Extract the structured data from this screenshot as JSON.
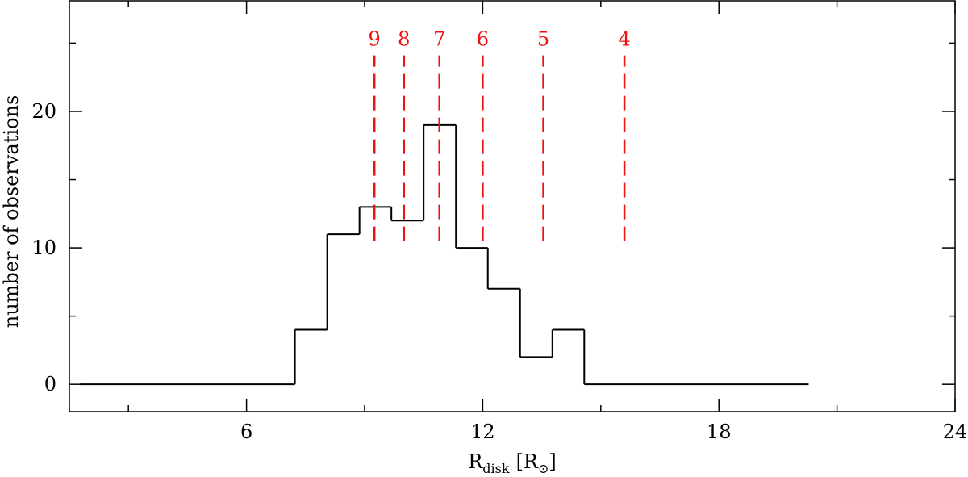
{
  "chart_data": {
    "type": "histogram",
    "xlabel": [
      "R",
      "disk",
      "[R",
      "⊙",
      "]"
    ],
    "ylabel": "number of observations",
    "bins": [
      1.77,
      7.23,
      8.05,
      8.87,
      9.68,
      10.5,
      11.32,
      12.13,
      12.95,
      13.77,
      14.58,
      20.28
    ],
    "counts": [
      0,
      4,
      11,
      13,
      12,
      19,
      10,
      7,
      2,
      4,
      0
    ],
    "color": "#000000",
    "xlim": [
      1.5,
      24
    ],
    "xticks": [
      6,
      12,
      18,
      24
    ],
    "xminor_ticks": [
      3,
      9,
      15,
      21
    ],
    "ylim": [
      -2,
      28.1
    ],
    "yticks": [
      0,
      10,
      20
    ],
    "yminor_ticks": [
      5,
      15,
      25
    ],
    "markers": [
      {
        "label": "9",
        "x": 9.25
      },
      {
        "label": "8",
        "x": 10.0
      },
      {
        "label": "7",
        "x": 10.9
      },
      {
        "label": "6",
        "x": 12.0
      },
      {
        "label": "5",
        "x": 13.54
      },
      {
        "label": "4",
        "x": 15.6
      }
    ],
    "marker_span": [
      10.5,
      24.1
    ],
    "marker_color": "#ee1111"
  }
}
